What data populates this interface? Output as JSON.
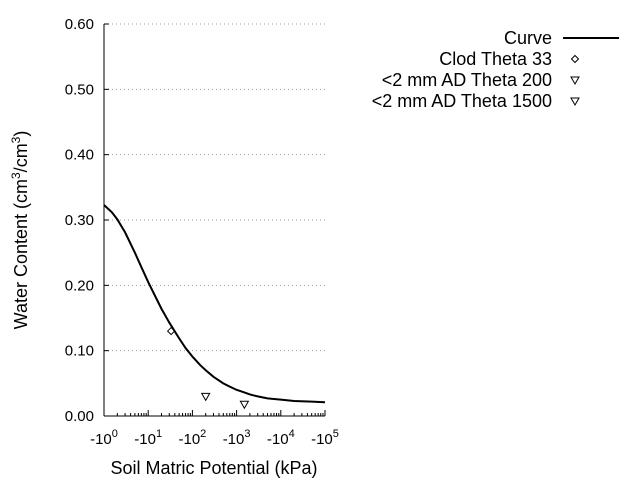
{
  "chart_data": {
    "type": "scatter",
    "xlabel": "Soil Matric Potential (kPa)",
    "ylabel_main": "Water Content (cm",
    "ylabel_sup1": "3",
    "ylabel_mid": "/cm",
    "ylabel_sup2": "3",
    "ylabel_end": ")",
    "x_scale": "log",
    "xlim": [
      1,
      100000
    ],
    "ylim": [
      0,
      0.6
    ],
    "grid": "horizontal-dotted",
    "legend_position": "top-right",
    "x_ticks": [
      {
        "value": 1,
        "base": "-10",
        "exp": "0"
      },
      {
        "value": 10,
        "base": "-10",
        "exp": "1"
      },
      {
        "value": 100,
        "base": "-10",
        "exp": "2"
      },
      {
        "value": 1000,
        "base": "-10",
        "exp": "3"
      },
      {
        "value": 10000,
        "base": "-10",
        "exp": "4"
      },
      {
        "value": 100000,
        "base": "-10",
        "exp": "5"
      }
    ],
    "y_ticks": [
      {
        "value": 0.0,
        "label": "0.00"
      },
      {
        "value": 0.1,
        "label": "0.10"
      },
      {
        "value": 0.2,
        "label": "0.20"
      },
      {
        "value": 0.3,
        "label": "0.30"
      },
      {
        "value": 0.4,
        "label": "0.40"
      },
      {
        "value": 0.5,
        "label": "0.50"
      },
      {
        "value": 0.6,
        "label": "0.60"
      }
    ],
    "series": [
      {
        "name": "Curve",
        "kind": "line",
        "color": "#000000",
        "x": [
          1,
          1.5,
          2,
          3,
          5,
          7,
          10,
          15,
          20,
          30,
          50,
          70,
          100,
          150,
          200,
          300,
          500,
          700,
          1000,
          1500,
          2000,
          3000,
          5000,
          7000,
          10000,
          20000,
          50000,
          100000
        ],
        "y": [
          0.323,
          0.312,
          0.301,
          0.281,
          0.25,
          0.228,
          0.205,
          0.181,
          0.164,
          0.143,
          0.119,
          0.104,
          0.091,
          0.078,
          0.07,
          0.06,
          0.05,
          0.045,
          0.04,
          0.036,
          0.033,
          0.03,
          0.027,
          0.026,
          0.025,
          0.023,
          0.022,
          0.021
        ]
      },
      {
        "name": "Clod Theta 33",
        "kind": "scatter",
        "marker": "diamond",
        "color": "#000000",
        "x": [
          33
        ],
        "y": [
          0.13
        ]
      },
      {
        "name": "<2 mm AD Theta 200",
        "kind": "scatter",
        "marker": "triangle-down",
        "color": "#000000",
        "x": [
          200
        ],
        "y": [
          0.03
        ]
      },
      {
        "name": "<2 mm AD Theta 1500",
        "kind": "scatter",
        "marker": "triangle-down",
        "color": "#000000",
        "x": [
          1500
        ],
        "y": [
          0.018
        ]
      }
    ]
  }
}
